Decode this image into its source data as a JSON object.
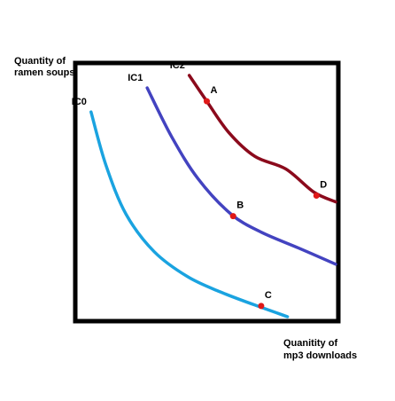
{
  "chart_data": {
    "type": "line",
    "title": "",
    "ylabel_lines": [
      "Quantity of",
      "ramen soups"
    ],
    "xlabel_lines": [
      "Quanitity of",
      "mp3 downloads"
    ],
    "xlim": [
      0,
      300
    ],
    "ylim": [
      0,
      290
    ],
    "grid": false,
    "legend": "none",
    "series": [
      {
        "name": "IC0",
        "color": "#1aa3e0",
        "points": [
          [
            18,
            235
          ],
          [
            35,
            175
          ],
          [
            58,
            120
          ],
          [
            90,
            78
          ],
          [
            128,
            50
          ],
          [
            165,
            33
          ],
          [
            205,
            18
          ],
          [
            242,
            5
          ]
        ]
      },
      {
        "name": "IC1",
        "color": "#4343c0",
        "points": [
          [
            82,
            262
          ],
          [
            110,
            207
          ],
          [
            140,
            160
          ],
          [
            178,
            120
          ],
          [
            212,
            100
          ],
          [
            255,
            82
          ],
          [
            297,
            64
          ]
        ]
      },
      {
        "name": "IC2",
        "color": "#8b0a1c",
        "points": [
          [
            130,
            276
          ],
          [
            150,
            247
          ],
          [
            175,
            212
          ],
          [
            205,
            185
          ],
          [
            240,
            171
          ],
          [
            272,
            145
          ],
          [
            297,
            134
          ]
        ]
      }
    ],
    "annotations": [
      {
        "label": "A",
        "x": 150,
        "y": 247,
        "color": "#e01818"
      },
      {
        "label": "B",
        "x": 180,
        "y": 118,
        "color": "#e01818"
      },
      {
        "label": "C",
        "x": 212,
        "y": 17,
        "color": "#e01818"
      },
      {
        "label": "D",
        "x": 275,
        "y": 141,
        "color": "#e01818"
      }
    ],
    "frame_color": "#000000"
  }
}
